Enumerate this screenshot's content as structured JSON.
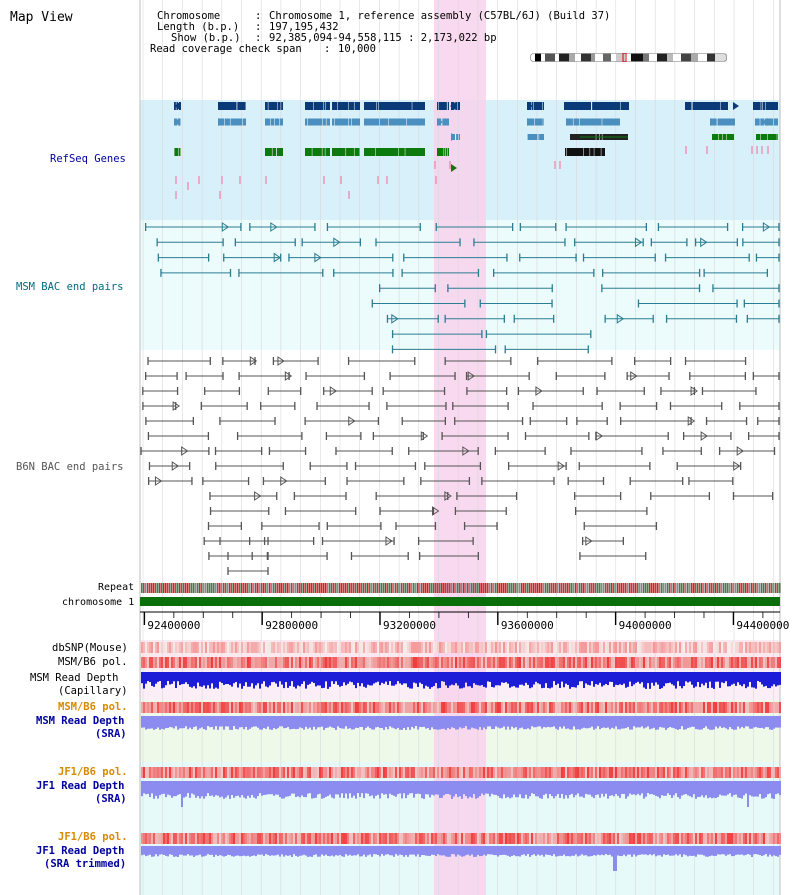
{
  "title": "Map View",
  "header": {
    "chromosome_label": "Chromosome",
    "chromosome_value": "Chromosome 1, reference assembly (C57BL/6J) (Build 37)",
    "length_label": "Length (b.p.)",
    "length_value": "197,195,432",
    "show_label": "Show (b.p.)",
    "show_value": "92,385,094-94,558,115 : 2,173,022 bp",
    "coverage_label": "Read coverage check span",
    "coverage_value": "10,000"
  },
  "tracks": {
    "refseq": "RefSeq Genes",
    "msm_bac": "MSM BAC end pairs",
    "b6n_bac": "B6N BAC end pairs",
    "repeat": "Repeat",
    "chromosome": "chromosome 1",
    "dbsnp": "dbSNP(Mouse)",
    "msm_b6_pol": "MSM/B6 pol.",
    "msm_depth_cap_1": "MSM Read Depth",
    "msm_depth_cap_2": "(Capillary)",
    "msm_b6_pol2": "MSM/B6 pol.",
    "msm_depth_sra_1": "MSM Read Depth",
    "msm_depth_sra_2": "(SRA)",
    "jf1_b6_pol": "JF1/B6 pol.",
    "jf1_depth_sra_1": "JF1 Read Depth",
    "jf1_depth_sra_2": "(SRA)",
    "jf1_b6_pol2": "JF1/B6 pol.",
    "jf1_depth_trim_1": "JF1 Read Depth",
    "jf1_depth_trim_2": "(SRA trimmed)"
  },
  "axis": {
    "ticks": [
      "92400000",
      "92800000",
      "93200000",
      "93600000",
      "94000000",
      "94400000"
    ]
  },
  "colors": {
    "refseq_bg": "#d8f0fa",
    "bac_bg": "#ecfbfb",
    "highlight": "#f8d2ec",
    "gene_dark": "#0b3a78",
    "gene_mid": "#4a8fbf",
    "gene_green": "#0c7a0c",
    "msm_line": "#2b7d93",
    "b6n_line": "#555555",
    "chrom": "#0a6e0a",
    "depth_blue": "#1d1dd8",
    "depth_light": "#8c8cf0",
    "label_blue": "#0000a0",
    "label_teal": "#006a80",
    "label_orange": "#d78a00"
  }
}
